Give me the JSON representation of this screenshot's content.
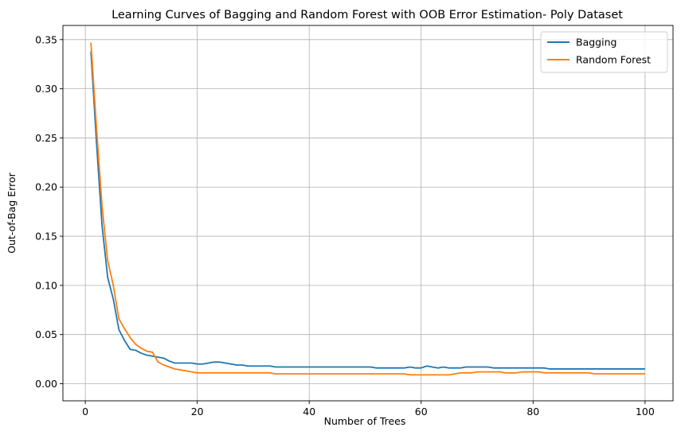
{
  "chart_data": {
    "type": "line",
    "title": "Learning Curves of Bagging and Random Forest with OOB Error Estimation- Poly Dataset",
    "xlabel": "Number of Trees",
    "ylabel": "Out-of-Bag Error",
    "xlim": [
      -4.0,
      105.0
    ],
    "ylim": [
      -0.0174,
      0.3644
    ],
    "xticks": [
      0,
      20,
      40,
      60,
      80,
      100
    ],
    "xtick_labels": [
      "0",
      "20",
      "40",
      "60",
      "80",
      "100"
    ],
    "yticks": [
      0.0,
      0.05,
      0.1,
      0.15,
      0.2,
      0.25,
      0.3,
      0.35
    ],
    "ytick_labels": [
      "0.00",
      "0.05",
      "0.10",
      "0.15",
      "0.20",
      "0.25",
      "0.30",
      "0.35"
    ],
    "grid": true,
    "legend_position": "top-right",
    "series": [
      {
        "name": "Bagging",
        "color": "#1f77b4",
        "values": [
          0.338,
          0.245,
          0.16,
          0.108,
          0.086,
          0.055,
          0.044,
          0.035,
          0.034,
          0.031,
          0.029,
          0.028,
          0.027,
          0.026,
          0.023,
          0.021,
          0.021,
          0.021,
          0.021,
          0.02,
          0.02,
          0.021,
          0.022,
          0.022,
          0.021,
          0.02,
          0.019,
          0.019,
          0.018,
          0.018,
          0.018,
          0.018,
          0.018,
          0.017,
          0.017,
          0.017,
          0.017,
          0.017,
          0.017,
          0.017,
          0.017,
          0.017,
          0.017,
          0.017,
          0.017,
          0.017,
          0.017,
          0.017,
          0.017,
          0.017,
          0.017,
          0.016,
          0.016,
          0.016,
          0.016,
          0.016,
          0.016,
          0.017,
          0.016,
          0.016,
          0.018,
          0.017,
          0.016,
          0.017,
          0.016,
          0.016,
          0.016,
          0.017,
          0.017,
          0.017,
          0.017,
          0.017,
          0.016,
          0.016,
          0.016,
          0.016,
          0.016,
          0.016,
          0.016,
          0.016,
          0.016,
          0.016,
          0.015,
          0.015,
          0.015,
          0.015,
          0.015,
          0.015,
          0.015,
          0.015,
          0.015,
          0.015,
          0.015,
          0.015,
          0.015,
          0.015,
          0.015,
          0.015,
          0.015,
          0.015
        ]
      },
      {
        "name": "Random Forest",
        "color": "#ff7f0e",
        "values": [
          0.347,
          0.26,
          0.18,
          0.125,
          0.1,
          0.066,
          0.056,
          0.047,
          0.04,
          0.036,
          0.033,
          0.032,
          0.022,
          0.019,
          0.017,
          0.015,
          0.014,
          0.013,
          0.012,
          0.011,
          0.011,
          0.011,
          0.011,
          0.011,
          0.011,
          0.011,
          0.011,
          0.011,
          0.011,
          0.011,
          0.011,
          0.011,
          0.011,
          0.01,
          0.01,
          0.01,
          0.01,
          0.01,
          0.01,
          0.01,
          0.01,
          0.01,
          0.01,
          0.01,
          0.01,
          0.01,
          0.01,
          0.01,
          0.01,
          0.01,
          0.01,
          0.01,
          0.01,
          0.01,
          0.01,
          0.01,
          0.01,
          0.009,
          0.009,
          0.009,
          0.009,
          0.009,
          0.009,
          0.009,
          0.009,
          0.01,
          0.011,
          0.011,
          0.011,
          0.012,
          0.012,
          0.012,
          0.012,
          0.012,
          0.011,
          0.011,
          0.011,
          0.012,
          0.012,
          0.012,
          0.012,
          0.011,
          0.011,
          0.011,
          0.011,
          0.011,
          0.011,
          0.011,
          0.011,
          0.011,
          0.01,
          0.01,
          0.01,
          0.01,
          0.01,
          0.01,
          0.01,
          0.01,
          0.01,
          0.01
        ]
      }
    ]
  }
}
